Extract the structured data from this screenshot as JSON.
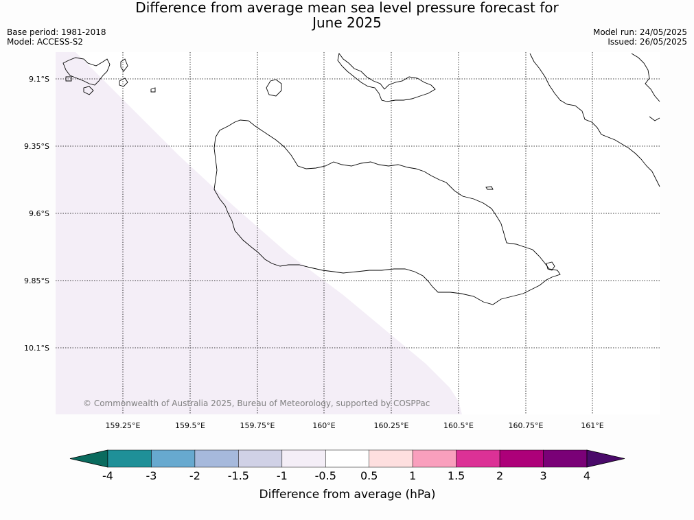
{
  "title": {
    "line1": "Difference from average mean sea level pressure forecast for",
    "line2": "June 2025"
  },
  "meta_left": {
    "base_period": "Base period: 1981-2018",
    "model": "Model: ACCESS-S2"
  },
  "meta_right": {
    "model_run": "Model run: 24/05/2025",
    "issued": "Issued: 26/05/2025"
  },
  "map": {
    "lat_labels": [
      "9.1°S",
      "9.35°S",
      "9.6°S",
      "9.85°S",
      "10.1°S"
    ],
    "lon_labels": [
      "159.25°E",
      "159.5°E",
      "159.75°E",
      "160°E",
      "160.25°E",
      "160.5°E",
      "160.75°E",
      "161°E"
    ],
    "copyright": "© Commonwealth of Australia 2025, Bureau of Meteorology, supported by COSPPac",
    "shaded_region_color": "#f4eef7",
    "shaded_region_range": "-1 to -0.5 hPa",
    "gridline_style": "dotted"
  },
  "colorbar": {
    "title": "Difference from average (hPa)",
    "tick_labels": [
      "-4",
      "-3",
      "-2",
      "-1.5",
      "-1",
      "-0.5",
      "0.5",
      "1",
      "1.5",
      "2",
      "3",
      "4"
    ],
    "under_color": "#0a6b5e",
    "over_color": "#4a0a6a",
    "bin_colors": [
      "#1f9098",
      "#67a9cf",
      "#a6b9dc",
      "#d0d1e6",
      "#f4eef7",
      "#ffffff",
      "#fedfdf",
      "#f99fbd",
      "#dc3196",
      "#ad0079",
      "#7a0177"
    ]
  }
}
